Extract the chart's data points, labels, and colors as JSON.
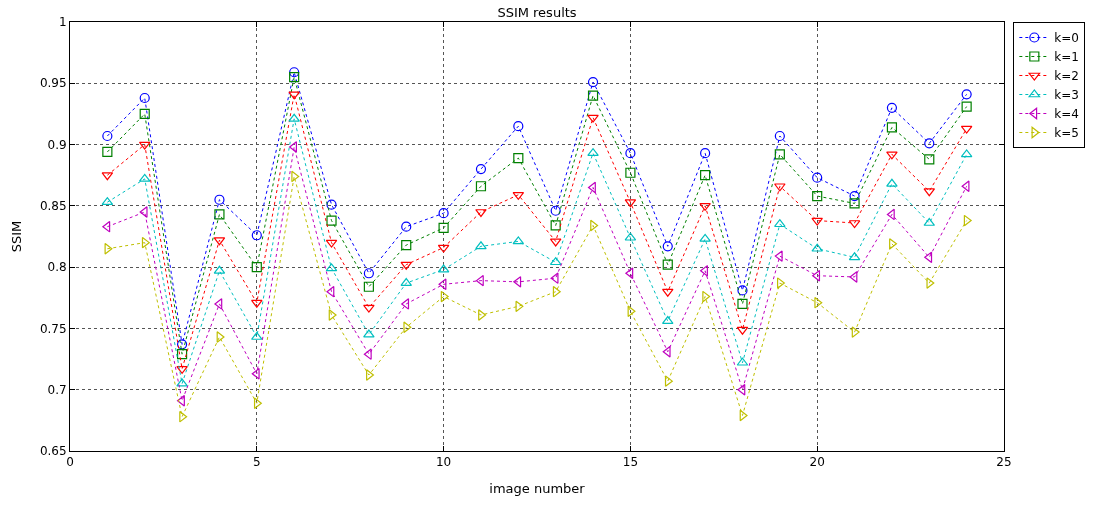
{
  "chart_data": {
    "type": "line",
    "title": "SSIM results",
    "xlabel": "image number",
    "ylabel": "SSIM",
    "x": [
      1,
      2,
      3,
      4,
      5,
      6,
      7,
      8,
      9,
      10,
      11,
      12,
      13,
      14,
      15,
      16,
      17,
      18,
      19,
      20,
      21,
      22,
      23,
      24
    ],
    "series": [
      {
        "name": "k=0",
        "color": "#0000ff",
        "marker": "circle",
        "values": [
          0.907,
          0.938,
          0.737,
          0.855,
          0.826,
          0.959,
          0.851,
          0.795,
          0.833,
          0.844,
          0.88,
          0.915,
          0.846,
          0.951,
          0.893,
          0.817,
          0.893,
          0.781,
          0.907,
          0.873,
          0.858,
          0.93,
          0.901,
          0.941
        ]
      },
      {
        "name": "k=1",
        "color": "#008000",
        "marker": "square",
        "values": [
          0.894,
          0.925,
          0.729,
          0.843,
          0.8,
          0.955,
          0.838,
          0.784,
          0.818,
          0.832,
          0.866,
          0.889,
          0.834,
          0.94,
          0.877,
          0.802,
          0.875,
          0.77,
          0.892,
          0.858,
          0.852,
          0.914,
          0.888,
          0.931
        ]
      },
      {
        "name": "k=2",
        "color": "#ff0000",
        "marker": "triangle",
        "values": [
          0.875,
          0.9,
          0.717,
          0.822,
          0.771,
          0.941,
          0.82,
          0.767,
          0.802,
          0.816,
          0.845,
          0.859,
          0.821,
          0.922,
          0.853,
          0.78,
          0.85,
          0.749,
          0.866,
          0.838,
          0.836,
          0.892,
          0.862,
          0.913
        ]
      },
      {
        "name": "k=3",
        "color": "#00bfbf",
        "marker": "triangle",
        "values": [
          0.853,
          0.872,
          0.705,
          0.797,
          0.743,
          0.921,
          0.799,
          0.745,
          0.787,
          0.798,
          0.817,
          0.821,
          0.804,
          0.893,
          0.824,
          0.756,
          0.823,
          0.722,
          0.835,
          0.815,
          0.808,
          0.868,
          0.836,
          0.892
        ]
      },
      {
        "name": "k=4",
        "color": "#bf00bf",
        "marker": "triangle",
        "values": [
          0.833,
          0.845,
          0.691,
          0.77,
          0.713,
          0.898,
          0.78,
          0.729,
          0.77,
          0.786,
          0.789,
          0.788,
          0.791,
          0.865,
          0.795,
          0.731,
          0.797,
          0.7,
          0.809,
          0.793,
          0.792,
          0.843,
          0.808,
          0.866
        ]
      },
      {
        "name": "k=5",
        "color": "#bfbf00",
        "marker": "triangle",
        "values": [
          0.815,
          0.82,
          0.678,
          0.743,
          0.689,
          0.874,
          0.761,
          0.712,
          0.751,
          0.776,
          0.761,
          0.768,
          0.78,
          0.834,
          0.764,
          0.707,
          0.776,
          0.679,
          0.787,
          0.771,
          0.747,
          0.819,
          0.787,
          0.838
        ]
      }
    ],
    "xlim": [
      0,
      25
    ],
    "xticks": [
      0,
      5,
      10,
      15,
      20,
      25
    ],
    "ylim": [
      0.65,
      1
    ],
    "yticks": [
      0.65,
      0.7,
      0.75,
      0.8,
      0.85,
      0.9,
      0.95,
      1
    ],
    "grid": true,
    "legend": "top right",
    "line_style": "dotted"
  }
}
